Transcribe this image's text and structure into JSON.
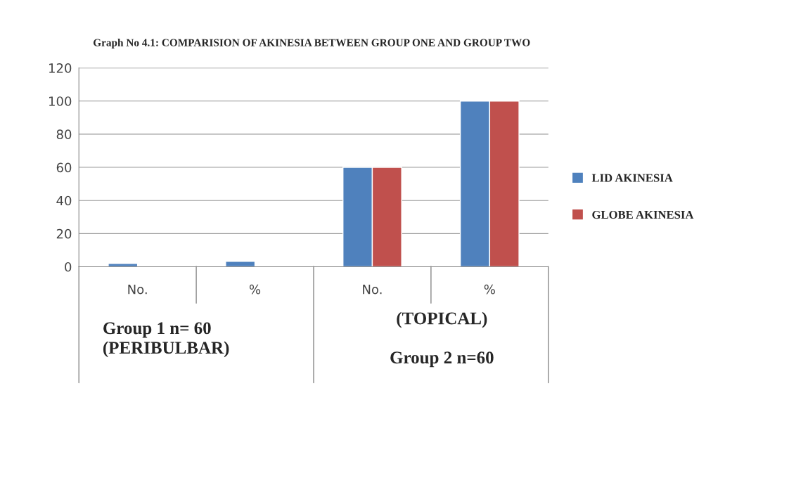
{
  "chart_data": {
    "type": "bar",
    "title": "Graph No 4.1: COMPARISION OF AKINESIA BETWEEN GROUP ONE AND GROUP TWO",
    "categories": [
      "No.",
      "%",
      "No.",
      "%"
    ],
    "series": [
      {
        "name": "LID AKINESIA",
        "color": "#4f81bd",
        "values": [
          2,
          3.3,
          60,
          100
        ]
      },
      {
        "name": "GLOBE AKINESIA",
        "color": "#c0504d",
        "values": [
          null,
          null,
          60,
          100
        ]
      }
    ],
    "ylim": [
      0,
      120
    ],
    "yticks": [
      0,
      20,
      40,
      60,
      80,
      100,
      120
    ],
    "grid": "y",
    "legend": "right",
    "annotations": [
      "Group 1 n= 60\n(PERIBULBAR)",
      "(TOPICAL)\n\nGroup 2 n=60"
    ]
  }
}
